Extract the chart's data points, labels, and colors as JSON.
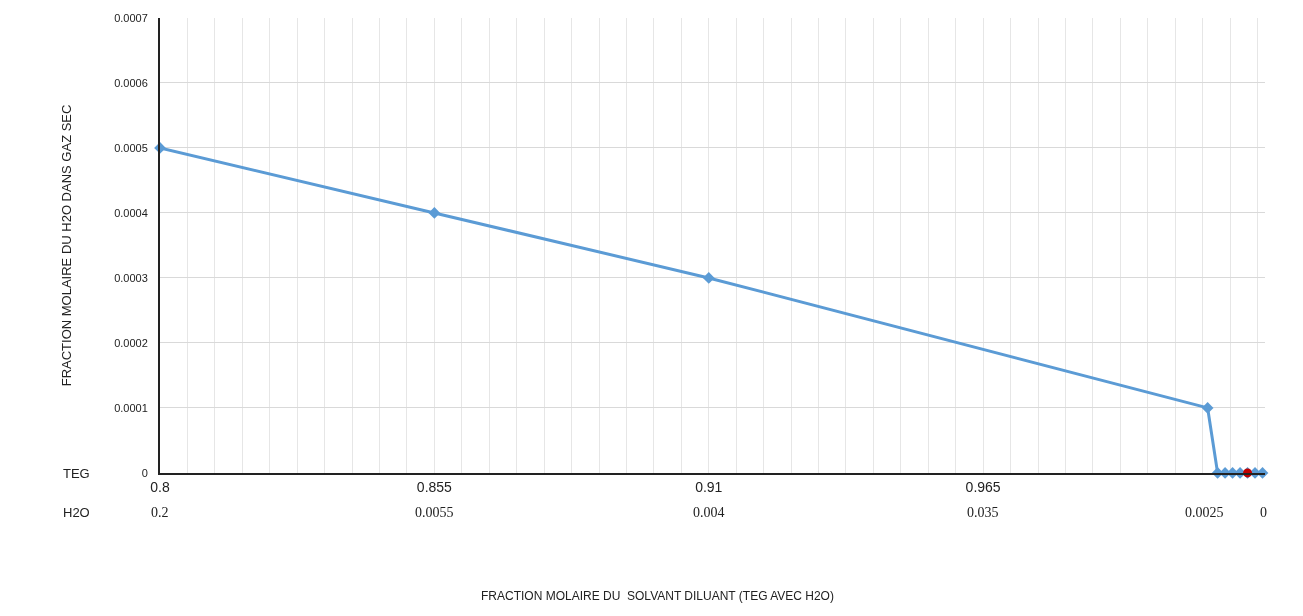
{
  "chart_data": {
    "type": "line",
    "ylabel": "FRACTION MOLAIRE DU H2O DANS GAZ SEC",
    "annotations": [
      "TEG",
      "H2O",
      "0.2",
      "0.0055",
      "0.004",
      "0.035",
      "0.0025",
      "0",
      "FRACTION MOLAIRE DU  SOLVANT DILUANT (TEG AVEC H2O)"
    ],
    "series": [
      {
        "color": "#5b9bd5",
        "marker": "diamond",
        "x": [
          0.8,
          0.855,
          0.91,
          1.01,
          1.012,
          1.0135,
          1.015,
          1.0165,
          1.018,
          1.0195,
          1.021
        ],
        "values": [
          0.0005,
          0.0004,
          0.0003,
          0.0001,
          0,
          0,
          0,
          0,
          0,
          0,
          0
        ]
      },
      {
        "type": "scatter",
        "color": "#c00000",
        "marker": "circle",
        "x": [
          1.018
        ],
        "values": [
          0
        ]
      }
    ],
    "xlim": [
      0.8,
      1.0215
    ],
    "xticks": [
      0.8,
      {
        "value": 0.8055,
        "label": null
      },
      {
        "value": 0.811,
        "label": null
      },
      {
        "value": 0.8165,
        "label": null
      },
      {
        "value": 0.822,
        "label": null
      },
      {
        "value": 0.8275,
        "label": null
      },
      {
        "value": 0.833,
        "label": null
      },
      {
        "value": 0.8385,
        "label": null
      },
      {
        "value": 0.844,
        "label": null
      },
      {
        "value": 0.8495,
        "label": null
      },
      0.855,
      {
        "value": 0.8605,
        "label": null
      },
      {
        "value": 0.866,
        "label": null
      },
      {
        "value": 0.8715,
        "label": null
      },
      {
        "value": 0.877,
        "label": null
      },
      {
        "value": 0.8825,
        "label": null
      },
      {
        "value": 0.888,
        "label": null
      },
      {
        "value": 0.8935,
        "label": null
      },
      {
        "value": 0.899,
        "label": null
      },
      {
        "value": 0.9045,
        "label": null
      },
      0.91,
      {
        "value": 0.9155,
        "label": null
      },
      {
        "value": 0.921,
        "label": null
      },
      {
        "value": 0.9265,
        "label": null
      },
      {
        "value": 0.932,
        "label": null
      },
      {
        "value": 0.9375,
        "label": null
      },
      {
        "value": 0.943,
        "label": null
      },
      {
        "value": 0.9485,
        "label": null
      },
      {
        "value": 0.954,
        "label": null
      },
      {
        "value": 0.9595,
        "label": null
      },
      0.965,
      {
        "value": 0.9705,
        "label": null
      },
      {
        "value": 0.976,
        "label": null
      },
      {
        "value": 0.9815,
        "label": null
      },
      {
        "value": 0.987,
        "label": null
      },
      {
        "value": 0.9925,
        "label": null
      },
      {
        "value": 0.998,
        "label": null
      },
      {
        "value": 1.0035,
        "label": null
      },
      {
        "value": 1.009,
        "label": null
      },
      {
        "value": 1.0145,
        "label": null
      },
      {
        "value": 1.02,
        "label": null
      }
    ],
    "ylim": [
      0,
      0.0007
    ],
    "yticks": [
      0,
      0.0001,
      0.0002,
      0.0003,
      0.0004,
      0.0005,
      0.0006,
      0.0007
    ],
    "grid": true
  }
}
